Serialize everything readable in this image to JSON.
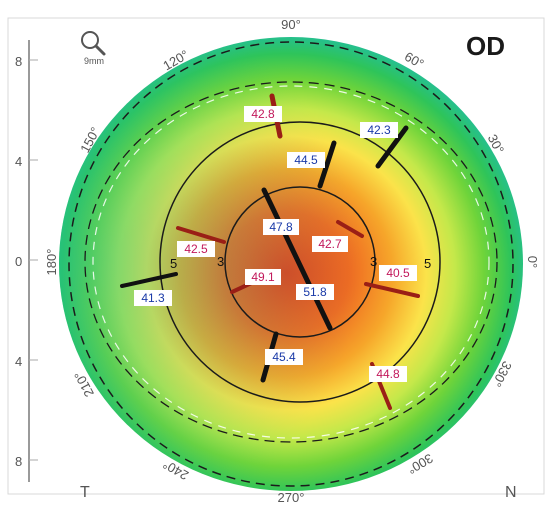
{
  "eye": "OD",
  "zoom_label": "9mm",
  "colors": {
    "red_marker": "#9a1f16",
    "black_marker": "#111111",
    "red_text": "#c2185b",
    "blue_text": "#1a3aa8"
  },
  "y_scale_labels": [
    "8",
    "4",
    "0",
    "4",
    "8"
  ],
  "axis_labels": [
    "90°",
    "60°",
    "30°",
    "0°",
    "330°",
    "300°",
    "270°",
    "240°",
    "210°",
    "180°",
    "150°",
    "120°"
  ],
  "zone_numbers": [
    "3",
    "3",
    "5",
    "5"
  ],
  "corners": {
    "temporal": "T",
    "nasal": "N"
  },
  "readings": [
    {
      "value": "42.8",
      "tone": "red"
    },
    {
      "value": "42.3",
      "tone": "blue"
    },
    {
      "value": "44.5",
      "tone": "blue"
    },
    {
      "value": "47.8",
      "tone": "blue"
    },
    {
      "value": "42.7",
      "tone": "red"
    },
    {
      "value": "42.5",
      "tone": "red"
    },
    {
      "value": "49.1",
      "tone": "red"
    },
    {
      "value": "51.8",
      "tone": "blue"
    },
    {
      "value": "40.5",
      "tone": "red"
    },
    {
      "value": "41.3",
      "tone": "blue"
    },
    {
      "value": "45.4",
      "tone": "blue"
    },
    {
      "value": "44.8",
      "tone": "red"
    }
  ]
}
